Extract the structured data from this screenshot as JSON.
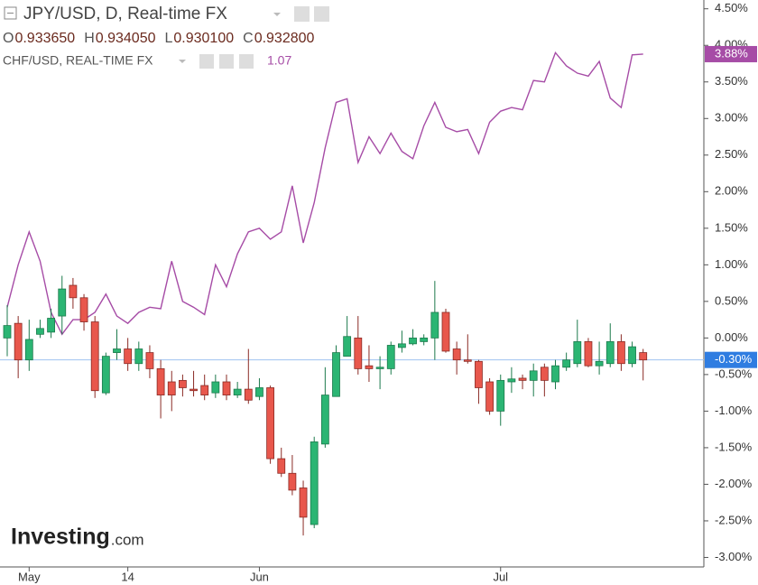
{
  "chart_data": {
    "type": "candlestick",
    "title": "JPY/USD, D, Real-time FX",
    "ohlc": [
      {
        "key": "O",
        "text": "0.933650"
      },
      {
        "key": "H",
        "text": "0.934050"
      },
      {
        "key": "L",
        "text": "0.930100"
      },
      {
        "key": "C",
        "text": "0.932800"
      }
    ],
    "categories": [
      null,
      null,
      "May",
      null,
      null,
      null,
      null,
      null,
      null,
      null,
      null,
      "14",
      null,
      null,
      null,
      null,
      null,
      null,
      null,
      null,
      null,
      null,
      null,
      "Jun",
      null,
      null,
      null,
      null,
      null,
      null,
      null,
      null,
      null,
      null,
      null,
      null,
      null,
      null,
      null,
      null,
      null,
      null,
      null,
      null,
      null,
      "Jul",
      null,
      null,
      null,
      null,
      null,
      null,
      null,
      null,
      null,
      null,
      null,
      null,
      null
    ],
    "open": [
      0.0,
      0.2,
      -0.3,
      0.05,
      0.08,
      0.3,
      0.72,
      0.55,
      0.22,
      -0.75,
      -0.2,
      -0.15,
      -0.35,
      -0.2,
      -0.42,
      -0.6,
      -0.58,
      -0.7,
      -0.65,
      -0.75,
      -0.6,
      -0.78,
      -0.7,
      -0.8,
      -0.68,
      -1.65,
      -1.85,
      -2.05,
      -2.55,
      -1.45,
      -0.8,
      -0.25,
      0.0,
      -0.38,
      -0.42,
      -0.42,
      -0.13,
      -0.08,
      -0.05,
      0.0,
      0.35,
      -0.15,
      -0.3,
      -0.32,
      -0.6,
      -1.0,
      -0.6,
      -0.55,
      -0.58,
      -0.4,
      -0.6,
      -0.4,
      -0.35,
      -0.05,
      -0.38,
      -0.35,
      -0.05,
      -0.35,
      -0.2
    ],
    "high": [
      0.45,
      0.3,
      0.25,
      0.25,
      0.4,
      0.85,
      0.82,
      0.6,
      0.3,
      -0.2,
      0.12,
      0.0,
      -0.05,
      -0.1,
      -0.3,
      -0.45,
      -0.5,
      -0.45,
      -0.5,
      -0.5,
      -0.5,
      -0.6,
      -0.15,
      -0.55,
      -0.65,
      -1.5,
      -1.6,
      -1.95,
      -1.35,
      -0.4,
      -0.1,
      0.3,
      0.3,
      -0.1,
      -0.25,
      -0.05,
      0.1,
      0.12,
      0.05,
      0.78,
      0.4,
      -0.05,
      0.05,
      -0.3,
      -0.55,
      -0.5,
      -0.4,
      -0.5,
      -0.35,
      -0.35,
      -0.3,
      -0.2,
      0.25,
      0.0,
      -0.05,
      0.2,
      0.05,
      -0.05,
      -0.15
    ],
    "low": [
      -0.25,
      -0.55,
      -0.45,
      0.0,
      0.0,
      0.05,
      0.4,
      0.1,
      -0.82,
      -0.78,
      -0.3,
      -0.45,
      -0.45,
      -0.55,
      -1.1,
      -1.0,
      -0.8,
      -0.8,
      -0.85,
      -0.82,
      -0.85,
      -0.82,
      -0.9,
      -0.85,
      -1.72,
      -1.9,
      -2.15,
      -2.7,
      -2.6,
      -1.5,
      -0.8,
      -0.25,
      -0.5,
      -0.6,
      -0.7,
      -0.5,
      -0.2,
      -0.1,
      -0.1,
      -0.3,
      -0.2,
      -0.5,
      -0.35,
      -0.9,
      -1.05,
      -1.2,
      -0.75,
      -0.7,
      -0.8,
      -0.8,
      -0.7,
      -0.45,
      -0.4,
      -0.4,
      -0.5,
      -0.4,
      -0.45,
      -0.4,
      -0.58
    ],
    "close": [
      0.17,
      -0.3,
      -0.02,
      0.13,
      0.27,
      0.67,
      0.55,
      0.22,
      -0.72,
      -0.25,
      -0.15,
      -0.35,
      -0.15,
      -0.42,
      -0.78,
      -0.78,
      -0.68,
      -0.72,
      -0.78,
      -0.6,
      -0.78,
      -0.7,
      -0.85,
      -0.68,
      -1.65,
      -1.85,
      -2.08,
      -2.45,
      -1.42,
      -0.78,
      -0.2,
      0.02,
      -0.42,
      -0.42,
      -0.4,
      -0.1,
      -0.08,
      0.0,
      0.0,
      0.35,
      -0.18,
      -0.3,
      -0.32,
      -0.68,
      -1.0,
      -0.58,
      -0.56,
      -0.58,
      -0.45,
      -0.58,
      -0.38,
      -0.3,
      -0.05,
      -0.38,
      -0.32,
      -0.05,
      -0.35,
      -0.12,
      -0.3
    ],
    "up_color": "#2bb573",
    "down_color": "#e8574c",
    "last_label": "-0.30%",
    "overlay": {
      "type": "line",
      "name": "CHF/USD, REAL-TIME FX",
      "value_text": "1.07",
      "color": "#a64ca6",
      "values": [
        0.42,
        1.0,
        1.45,
        1.05,
        0.35,
        0.05,
        0.25,
        0.25,
        0.35,
        0.6,
        0.3,
        0.2,
        0.35,
        0.42,
        0.4,
        1.05,
        0.5,
        0.42,
        0.32,
        1.0,
        0.7,
        1.15,
        1.45,
        1.5,
        1.35,
        1.45,
        2.08,
        1.3,
        1.85,
        2.6,
        3.22,
        3.27,
        2.4,
        2.75,
        2.52,
        2.8,
        2.55,
        2.45,
        2.9,
        3.22,
        2.88,
        2.82,
        2.85,
        2.52,
        2.95,
        3.1,
        3.15,
        3.12,
        3.52,
        3.5,
        3.9,
        3.72,
        3.62,
        3.58,
        3.78,
        3.28,
        3.15,
        3.87,
        3.88
      ],
      "last_label": "3.88%"
    },
    "ylim": [
      -3.13,
      4.62
    ],
    "yticks": [
      {
        "value": -3,
        "label": "-3.00%"
      },
      {
        "value": -2.5,
        "label": "-2.50%"
      },
      {
        "value": -2,
        "label": "-2.00%"
      },
      {
        "value": -1.5,
        "label": "-1.50%"
      },
      {
        "value": -1,
        "label": "-1.00%"
      },
      {
        "value": -0.5,
        "label": "-0.50%"
      },
      {
        "value": 0,
        "label": "0.00%"
      },
      {
        "value": 0.5,
        "label": "0.50%"
      },
      {
        "value": 1,
        "label": "1.00%"
      },
      {
        "value": 1.5,
        "label": "1.50%"
      },
      {
        "value": 2,
        "label": "2.00%"
      },
      {
        "value": 2.5,
        "label": "2.50%"
      },
      {
        "value": 3,
        "label": "3.00%"
      },
      {
        "value": 3.5,
        "label": "3.50%"
      },
      {
        "value": 4,
        "label": "4.00%"
      },
      {
        "value": 4.5,
        "label": "4.50%"
      }
    ],
    "logo": {
      "brand": "Investing",
      "suffix": ".com"
    }
  }
}
